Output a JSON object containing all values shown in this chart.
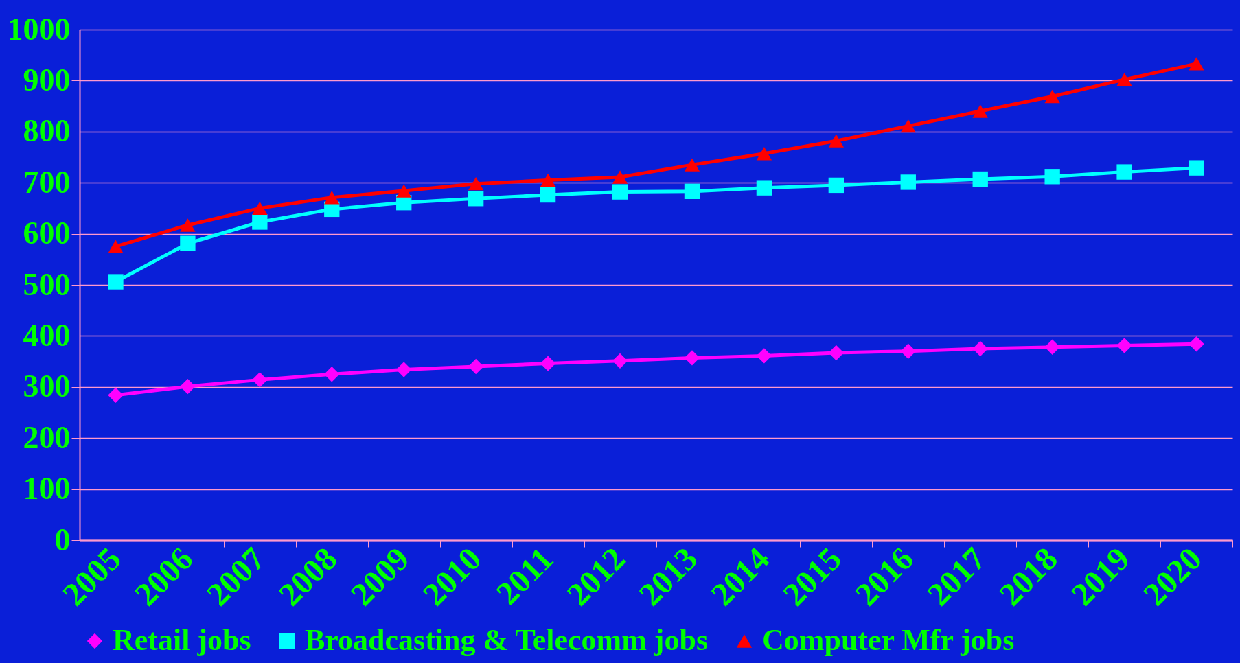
{
  "chart_data": {
    "type": "line",
    "categories": [
      "2005",
      "2006",
      "2007",
      "2008",
      "2009",
      "2010",
      "2011",
      "2012",
      "2013",
      "2014",
      "2015",
      "2016",
      "2017",
      "2018",
      "2019",
      "2020"
    ],
    "series": [
      {
        "name": "Retail jobs",
        "color": "#ff00ff",
        "marker": "diamond",
        "values": [
          284,
          301,
          314,
          325,
          334,
          340,
          346,
          351,
          357,
          361,
          367,
          370,
          375,
          378,
          381,
          384
        ]
      },
      {
        "name": "Broadcasting & Telecomm jobs",
        "color": "#00ffff",
        "marker": "square",
        "values": [
          506,
          581,
          623,
          648,
          661,
          669,
          676,
          682,
          683,
          690,
          695,
          701,
          707,
          712,
          721,
          729
        ]
      },
      {
        "name": "Computer Mfr jobs",
        "color": "#ff0000",
        "marker": "triangle",
        "values": [
          575,
          617,
          650,
          671,
          684,
          698,
          705,
          711,
          735,
          757,
          782,
          811,
          840,
          869,
          902,
          933
        ]
      }
    ],
    "ylim": [
      0,
      1000
    ],
    "yticks": [
      0,
      100,
      200,
      300,
      400,
      500,
      600,
      700,
      800,
      900,
      1000
    ],
    "grid": "y",
    "legend": "bottom"
  }
}
